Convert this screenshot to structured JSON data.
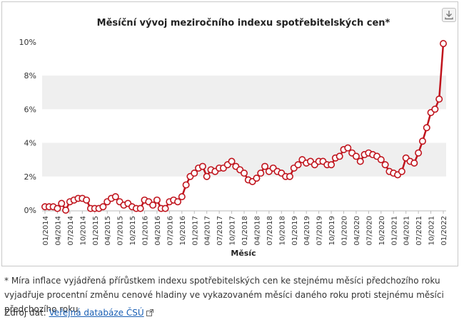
{
  "chart_data": {
    "type": "line",
    "title": "Měsíční vývoj meziročního indexu spotřebitelských cen*",
    "xlabel": "Měsíc",
    "ylabel": "",
    "ylim": [
      0,
      10.5
    ],
    "yticks": [
      0,
      2,
      4,
      6,
      8,
      10
    ],
    "ytick_labels": [
      "0%",
      "2%",
      "4%",
      "6%",
      "8%",
      "10%"
    ],
    "grid": "alternating horizontal bands",
    "legend": "none",
    "series_color": "#c0141d",
    "xtick_labels": [
      "01/2014",
      "04/2014",
      "07/2014",
      "10/2014",
      "01/2015",
      "04/2015",
      "07/2015",
      "10/2015",
      "01/2016",
      "04/2016",
      "07/2016",
      "10/2016",
      "01/2017",
      "04/2017",
      "07/2017",
      "10/2017",
      "01/2018",
      "04/2018",
      "07/2018",
      "10/2018",
      "01/2019",
      "04/2019",
      "07/2019",
      "10/2019",
      "01/2020",
      "04/2020",
      "07/2020",
      "10/2020",
      "01/2021",
      "04/2021",
      "07/2021",
      "10/2021",
      "01/2022"
    ],
    "series": [
      {
        "name": "Meziroční index spotřebitelských cen",
        "start": "01/2014",
        "values": [
          0.2,
          0.2,
          0.2,
          0.1,
          0.4,
          0.0,
          0.5,
          0.6,
          0.7,
          0.7,
          0.6,
          0.1,
          0.1,
          0.1,
          0.2,
          0.5,
          0.7,
          0.8,
          0.5,
          0.3,
          0.4,
          0.2,
          0.1,
          0.1,
          0.6,
          0.5,
          0.3,
          0.6,
          0.1,
          0.1,
          0.5,
          0.6,
          0.5,
          0.8,
          1.5,
          2.0,
          2.2,
          2.5,
          2.6,
          2.0,
          2.4,
          2.3,
          2.5,
          2.5,
          2.7,
          2.9,
          2.6,
          2.4,
          2.2,
          1.8,
          1.7,
          1.9,
          2.2,
          2.6,
          2.3,
          2.5,
          2.3,
          2.2,
          2.0,
          2.0,
          2.5,
          2.7,
          3.0,
          2.8,
          2.9,
          2.7,
          2.9,
          2.9,
          2.7,
          2.7,
          3.1,
          3.2,
          3.6,
          3.7,
          3.4,
          3.2,
          2.9,
          3.3,
          3.4,
          3.3,
          3.2,
          3.0,
          2.7,
          2.3,
          2.2,
          2.1,
          2.3,
          3.1,
          2.9,
          2.8,
          3.4,
          4.1,
          4.9,
          5.8,
          6.0,
          6.6,
          9.9
        ]
      }
    ]
  },
  "footnote": "* Míra inflace vyjádřená přírůstkem indexu spotřebitelských cen ke stejnému měsíci předchozího roku vyjadřuje procentní změnu cenové hladiny ve vykazovaném měsíci daného roku proti stejnému měsíci předchozího roku.",
  "source": {
    "label": "Zdroj dat:",
    "link_text": "Veřejná databáze ČSÚ"
  },
  "download_icon": "download-icon"
}
